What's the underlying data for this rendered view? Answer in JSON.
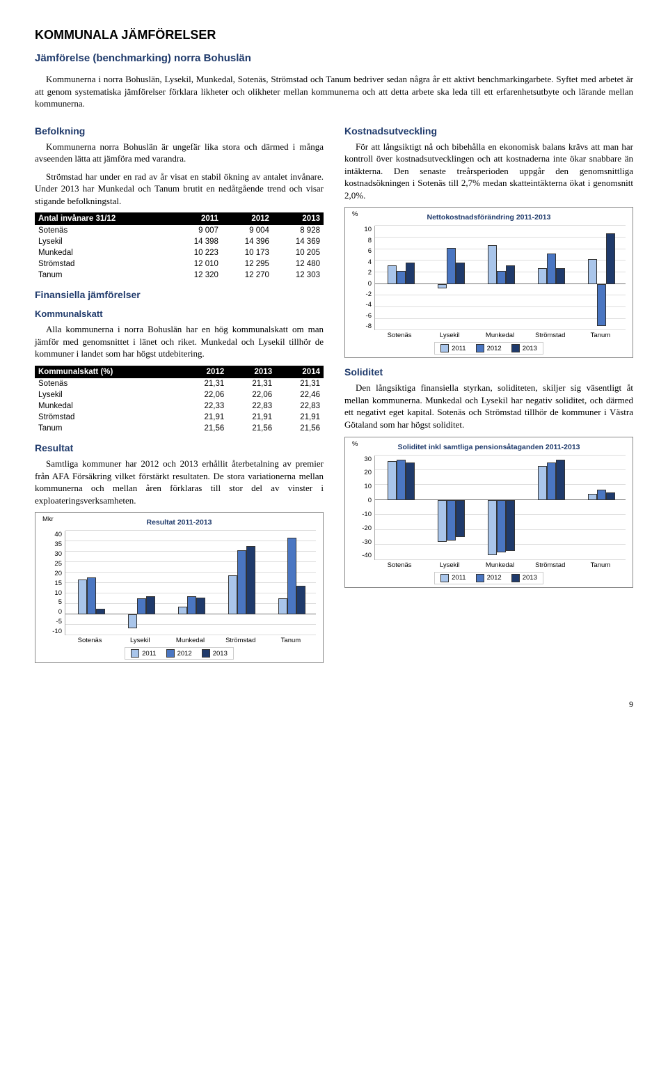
{
  "page_title": "KOMMUNALA JÄMFÖRELSER",
  "sub_title": "Jämförelse (benchmarking) norra Bohuslän",
  "intro_p1": "Kommunerna i norra Bohuslän, Lysekil, Munkedal, Sotenäs, Strömstad och Tanum bedriver sedan några år ett aktivt benchmarkingarbete. Syftet med arbetet är att genom systematiska jämförelser förklara likheter och olikheter mellan kommunerna och att detta arbete ska leda till ett erfarenhetsutbyte och lärande mellan kommunerna.",
  "left": {
    "befolkning_h": "Befolkning",
    "befolkning_p1": "Kommunerna norra Bohuslän är ungefär lika stora och därmed i många avseenden lätta att jämföra med varandra.",
    "befolkning_p2": "Strömstad har under en rad av år visat en stabil ökning av antalet invånare. Under 2013 har Munkedal och Tanum brutit en nedåtgående trend och visar stigande befolkningstal.",
    "fin_h": "Finansiella jämförelser",
    "komskatt_h": "Kommunalskatt",
    "komskatt_p1": "Alla kommunerna i norra Bohuslän har en hög kommunalskatt om man jämför med genomsnittet i länet och riket. Munkedal och Lysekil tillhör de kommuner i landet som har högst utdebitering.",
    "resultat_h": "Resultat",
    "resultat_p1": "Samtliga kommuner har 2012 och 2013 erhållit återbetalning av premier från AFA Försäkring vilket förstärkt resultaten. De stora variationerna mellan kommunerna och mellan åren förklaras till stor del av vinster i exploateringsverksamheten."
  },
  "right": {
    "kostnad_h": "Kostnadsutveckling",
    "kostnad_p1": "För att långsiktigt nå och bibehålla en ekonomisk balans krävs att man har kontroll över kostnadsutvecklingen och att kostnaderna inte ökar snabbare än intäkterna. Den senaste treårsperioden uppgår den genomsnittliga kostnadsökningen i Sotenäs till 2,7% medan skatteintäkterna ökat i genomsnitt 2,0%.",
    "soliditet_h": "Soliditet",
    "soliditet_p1": "Den långsiktiga finansiella styrkan, soliditeten, skiljer sig väsentligt åt mellan kommunerna. Munkedal och Lysekil har negativ soliditet, och därmed ett negativt eget kapital. Sotenäs och Strömstad tillhör de kommuner i Västra Götaland som har högst soliditet."
  },
  "tables": {
    "invanare": {
      "header": [
        "Antal invånare 31/12",
        "2011",
        "2012",
        "2013"
      ],
      "rows": [
        [
          "Sotenäs",
          "9 007",
          "9 004",
          "8 928"
        ],
        [
          "Lysekil",
          "14 398",
          "14 396",
          "14 369"
        ],
        [
          "Munkedal",
          "10 223",
          "10 173",
          "10 205"
        ],
        [
          "Strömstad",
          "12 010",
          "12 295",
          "12 480"
        ],
        [
          "Tanum",
          "12 320",
          "12 270",
          "12 303"
        ]
      ]
    },
    "skatt": {
      "header": [
        "Kommunalskatt (%)",
        "2012",
        "2013",
        "2014"
      ],
      "rows": [
        [
          "Sotenäs",
          "21,31",
          "21,31",
          "21,31"
        ],
        [
          "Lysekil",
          "22,06",
          "22,06",
          "22,46"
        ],
        [
          "Munkedal",
          "22,33",
          "22,83",
          "22,83"
        ],
        [
          "Strömstad",
          "21,91",
          "21,91",
          "21,91"
        ],
        [
          "Tanum",
          "21,56",
          "21,56",
          "21,56"
        ]
      ]
    }
  },
  "charts": {
    "resultat": {
      "title": "Resultat 2011-2013",
      "unit": "Mkr",
      "categories": [
        "Sotenäs",
        "Lysekil",
        "Munkedal",
        "Strömstad",
        "Tanum"
      ],
      "series_labels": [
        "2011",
        "2012",
        "2013"
      ],
      "colors": [
        "#a9c5ea",
        "#4a76c2",
        "#1f3a6b"
      ],
      "ymin": -10,
      "ymax": 40,
      "ystep": 5,
      "values": [
        [
          16,
          17,
          2
        ],
        [
          -6,
          7,
          8
        ],
        [
          3,
          8,
          7.5
        ],
        [
          18,
          30,
          32
        ],
        [
          7,
          36,
          13
        ]
      ]
    },
    "netto": {
      "title": "Nettokostnadsförändring 2011-2013",
      "unit": "%",
      "categories": [
        "Sotenäs",
        "Lysekil",
        "Munkedal",
        "Strömstad",
        "Tanum"
      ],
      "series_labels": [
        "2011",
        "2012",
        "2013"
      ],
      "colors": [
        "#a9c5ea",
        "#4a76c2",
        "#1f3a6b"
      ],
      "ymin": -8,
      "ymax": 10,
      "ystep": 2,
      "values": [
        [
          3,
          2,
          3.5
        ],
        [
          -0.5,
          6,
          3.5
        ],
        [
          6.5,
          2,
          3
        ],
        [
          2.5,
          5,
          2.5
        ],
        [
          4,
          -7,
          8.5
        ]
      ]
    },
    "soliditet": {
      "title": "Soliditet inkl samtliga pensionsåtaganden 2011-2013",
      "unit": "%",
      "categories": [
        "Sotenäs",
        "Lysekil",
        "Munkedal",
        "Strömstad",
        "Tanum"
      ],
      "series_labels": [
        "2011",
        "2012",
        "2013"
      ],
      "colors": [
        "#a9c5ea",
        "#4a76c2",
        "#1f3a6b"
      ],
      "ymin": -40,
      "ymax": 30,
      "ystep": 10,
      "values": [
        [
          25,
          26,
          24
        ],
        [
          -27,
          -26,
          -24
        ],
        [
          -36,
          -34,
          -33
        ],
        [
          22,
          24,
          26
        ],
        [
          3,
          6,
          4
        ]
      ]
    }
  },
  "page_num": "9"
}
